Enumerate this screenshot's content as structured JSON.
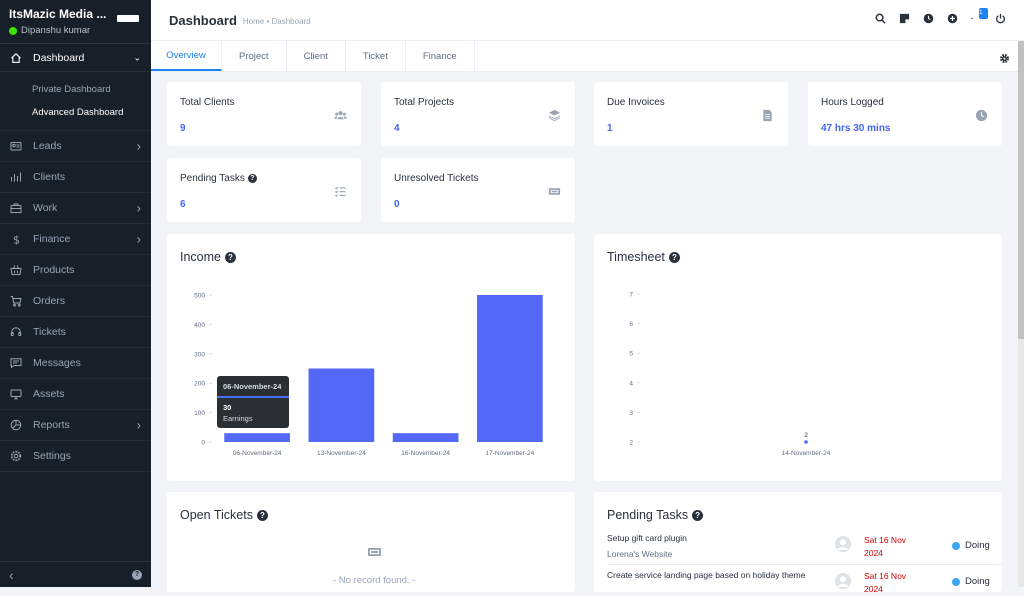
{
  "brand": {
    "name": "ItsMazic Media ...",
    "user": "Dipanshu kumar"
  },
  "sidebar": {
    "dashboard": "Dashboard",
    "sub_items": [
      "Private Dashboard",
      "Advanced Dashboard"
    ],
    "items": [
      {
        "label": "Leads",
        "icon": "leads-icon",
        "chevron": true
      },
      {
        "label": "Clients",
        "icon": "clients-icon",
        "chevron": false
      },
      {
        "label": "Work",
        "icon": "work-icon",
        "chevron": true
      },
      {
        "label": "Finance",
        "icon": "dollar-icon",
        "chevron": true
      },
      {
        "label": "Products",
        "icon": "basket-icon",
        "chevron": false
      },
      {
        "label": "Orders",
        "icon": "cart-icon",
        "chevron": false
      },
      {
        "label": "Tickets",
        "icon": "headset-icon",
        "chevron": false
      },
      {
        "label": "Messages",
        "icon": "messages-icon",
        "chevron": false
      },
      {
        "label": "Assets",
        "icon": "monitor-icon",
        "chevron": false
      },
      {
        "label": "Reports",
        "icon": "pie-chart-icon",
        "chevron": true
      },
      {
        "label": "Settings",
        "icon": "gear-icon",
        "chevron": false
      }
    ],
    "collapse": "‹",
    "help": "?"
  },
  "header": {
    "title": "Dashboard",
    "breadcrumb": "Home • Dashboard",
    "notification_count": "1"
  },
  "tabs": [
    "Overview",
    "Project",
    "Client",
    "Ticket",
    "Finance"
  ],
  "stats": {
    "total_clients": {
      "label": "Total Clients",
      "value": "9"
    },
    "total_projects": {
      "label": "Total Projects",
      "value": "4"
    },
    "due_invoices": {
      "label": "Due Invoices",
      "value": "1"
    },
    "hours_logged": {
      "label": "Hours Logged",
      "value": "47 hrs 30 mins"
    },
    "pending_tasks": {
      "label": "Pending Tasks",
      "value": "6"
    },
    "unresolved_tickets": {
      "label": "Unresolved Tickets",
      "value": "0"
    }
  },
  "chart_data": [
    {
      "type": "bar",
      "title": "Income",
      "categories": [
        "06-November-24",
        "13-November-24",
        "16-November-24",
        "17-November-24"
      ],
      "series": [
        {
          "name": "Earnings",
          "values": [
            30,
            250,
            30,
            500
          ]
        }
      ],
      "yticks": [
        0,
        100,
        200,
        300,
        400,
        500
      ],
      "ylim": [
        0,
        500
      ],
      "color": "#5468f7",
      "tooltip": {
        "category": "06-November-24",
        "value": "30",
        "series": "Earnings"
      }
    },
    {
      "type": "scatter",
      "title": "Timesheet",
      "categories": [
        "14-November-24"
      ],
      "series": [
        {
          "values": [
            2
          ]
        }
      ],
      "yticks": [
        2,
        3,
        4,
        5,
        6,
        7
      ],
      "ylim": [
        2,
        7
      ],
      "color": "#5468f7",
      "point_label": "2"
    }
  ],
  "open_tickets": {
    "title": "Open Tickets",
    "empty": "- No record found. -"
  },
  "pending_tasks": {
    "title": "Pending Tasks",
    "rows": [
      {
        "title": "Setup gift card plugin",
        "project": "Lorena's Website",
        "date_line1": "Sat 16 Nov",
        "date_line2": "2024",
        "status": "Doing"
      },
      {
        "title": "Create service landing page based on holiday theme",
        "project": "",
        "date_line1": "Sat 16 Nov",
        "date_line2": "2024",
        "status": "Doing"
      }
    ]
  }
}
